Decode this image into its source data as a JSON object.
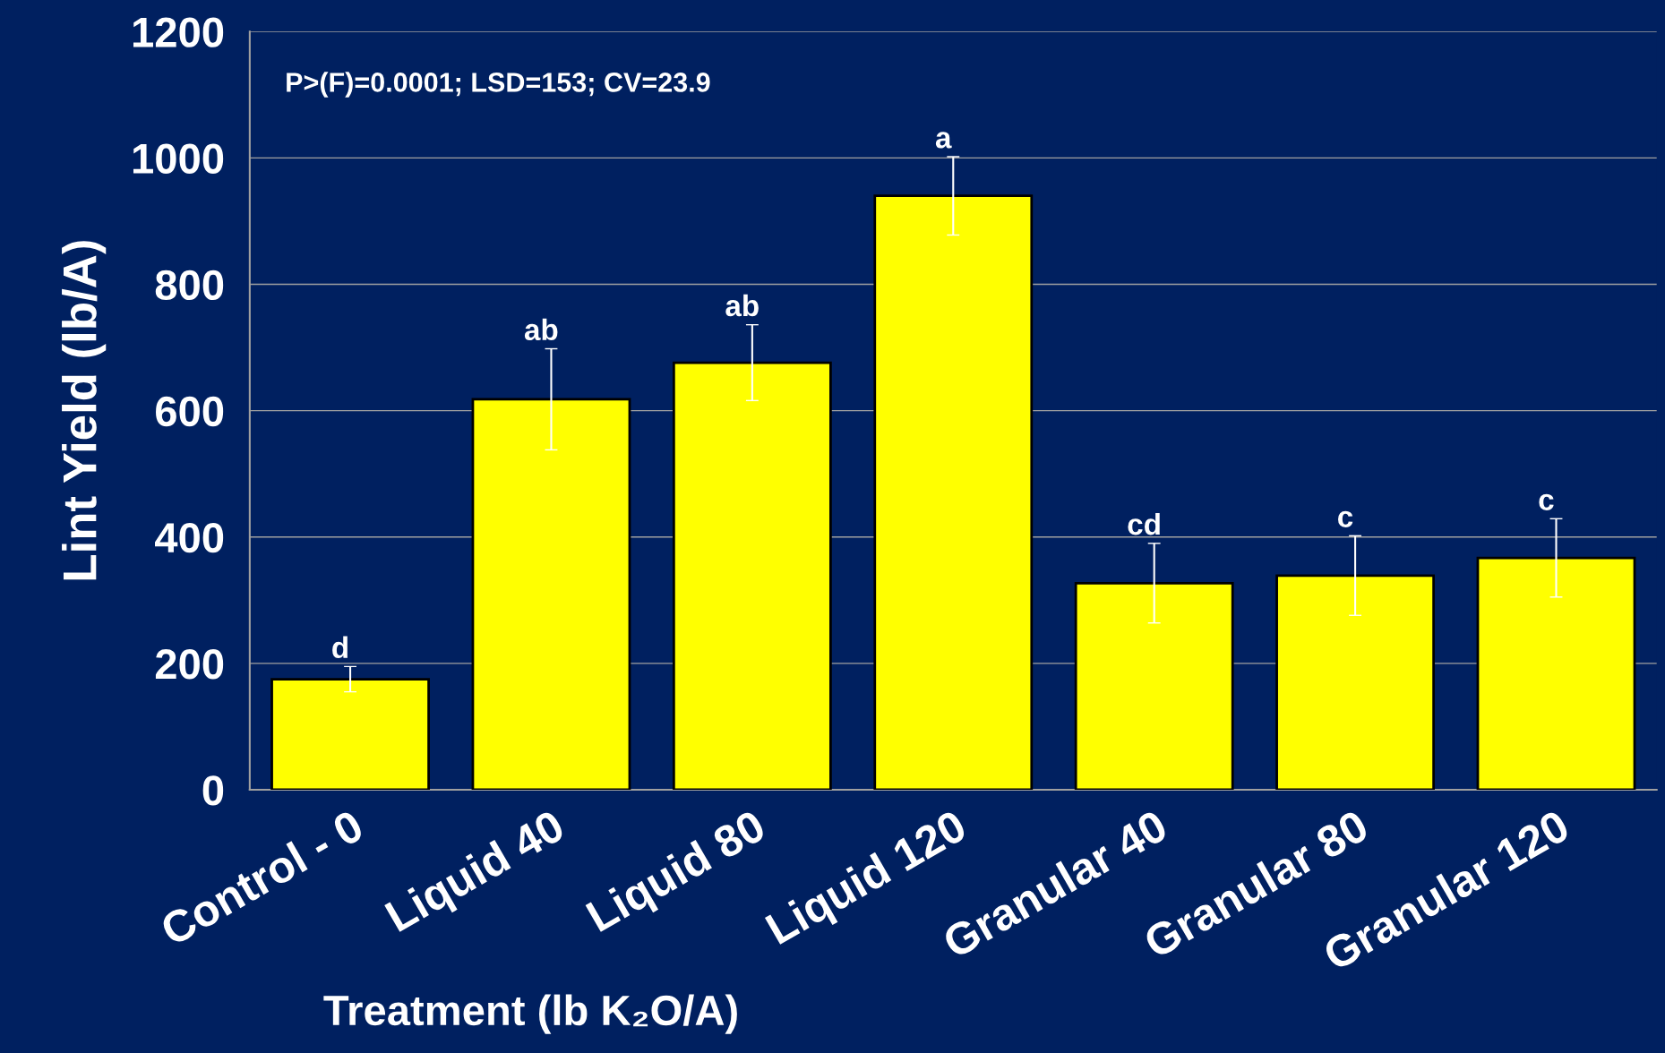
{
  "chart_data": {
    "type": "bar",
    "ylabel": "Lint Yield (lb/A)",
    "xlabel": "Treatment (lb K₂O/A)",
    "categories": [
      "Control - 0",
      "Liquid 40",
      "Liquid 80",
      "Liquid 120",
      "Granular 40",
      "Granular 80",
      "Granular 120"
    ],
    "values": [
      175,
      618,
      676,
      940,
      327,
      339,
      367
    ],
    "errors": [
      20,
      80,
      60,
      62,
      63,
      63,
      62
    ],
    "value_labels": [
      "d",
      "ab",
      "ab",
      "a",
      "cd",
      "c",
      "c"
    ],
    "color": "#ffff00",
    "ylim": [
      0,
      1200
    ],
    "yticks": [
      0,
      200,
      400,
      600,
      800,
      1000,
      1200
    ],
    "grid": "y",
    "annotations": [
      "P>(F)=0.0001; LSD=153; CV=23.9"
    ]
  }
}
